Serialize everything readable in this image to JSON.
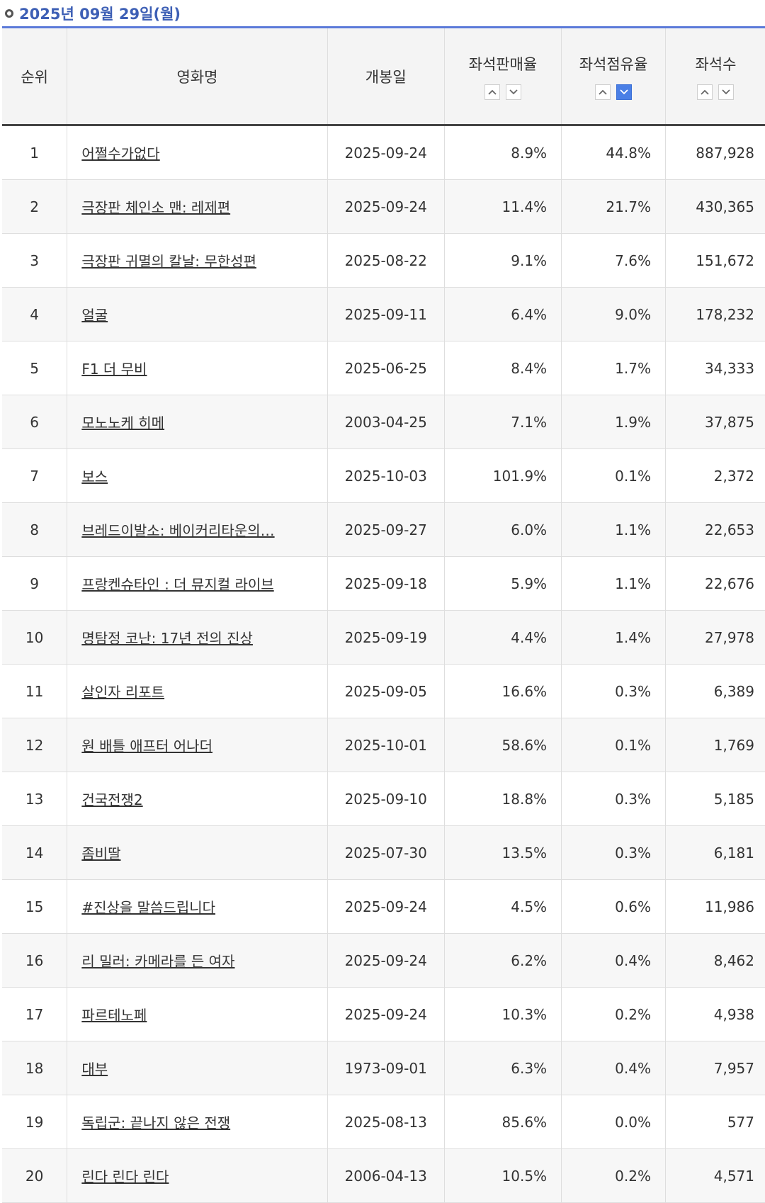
{
  "date_label": "2025년 09월 29일(월)",
  "headers": {
    "rank": "순위",
    "title": "영화명",
    "release": "개봉일",
    "sales_rate": "좌석판매율",
    "seat_share": "좌석점유율",
    "seats": "좌석수"
  },
  "sort": {
    "active_column": "seat_share",
    "active_direction": "desc",
    "active_color": "#4a7fe6"
  },
  "accent_color": "#5b7ad9",
  "rows": [
    {
      "rank": "1",
      "title": "어쩔수가없다",
      "release": "2025-09-24",
      "sales_rate": "8.9%",
      "seat_share": "44.8%",
      "seats": "887,928"
    },
    {
      "rank": "2",
      "title": "극장판 체인소 맨: 레제편",
      "release": "2025-09-24",
      "sales_rate": "11.4%",
      "seat_share": "21.7%",
      "seats": "430,365"
    },
    {
      "rank": "3",
      "title": "극장판 귀멸의 칼날: 무한성편",
      "release": "2025-08-22",
      "sales_rate": "9.1%",
      "seat_share": "7.6%",
      "seats": "151,672"
    },
    {
      "rank": "4",
      "title": "얼굴",
      "release": "2025-09-11",
      "sales_rate": "6.4%",
      "seat_share": "9.0%",
      "seats": "178,232"
    },
    {
      "rank": "5",
      "title": "F1 더 무비",
      "release": "2025-06-25",
      "sales_rate": "8.4%",
      "seat_share": "1.7%",
      "seats": "34,333"
    },
    {
      "rank": "6",
      "title": "모노노케 히메",
      "release": "2003-04-25",
      "sales_rate": "7.1%",
      "seat_share": "1.9%",
      "seats": "37,875"
    },
    {
      "rank": "7",
      "title": "보스",
      "release": "2025-10-03",
      "sales_rate": "101.9%",
      "seat_share": "0.1%",
      "seats": "2,372"
    },
    {
      "rank": "8",
      "title": "브레드이발소: 베이커리타운의…",
      "release": "2025-09-27",
      "sales_rate": "6.0%",
      "seat_share": "1.1%",
      "seats": "22,653"
    },
    {
      "rank": "9",
      "title": "프랑켄슈타인 : 더 뮤지컬 라이브",
      "release": "2025-09-18",
      "sales_rate": "5.9%",
      "seat_share": "1.1%",
      "seats": "22,676"
    },
    {
      "rank": "10",
      "title": "명탐정 코난: 17년 전의 진상",
      "release": "2025-09-19",
      "sales_rate": "4.4%",
      "seat_share": "1.4%",
      "seats": "27,978"
    },
    {
      "rank": "11",
      "title": "살인자 리포트",
      "release": "2025-09-05",
      "sales_rate": "16.6%",
      "seat_share": "0.3%",
      "seats": "6,389"
    },
    {
      "rank": "12",
      "title": "원 배틀 애프터 어나더",
      "release": "2025-10-01",
      "sales_rate": "58.6%",
      "seat_share": "0.1%",
      "seats": "1,769"
    },
    {
      "rank": "13",
      "title": "건국전쟁2",
      "release": "2025-09-10",
      "sales_rate": "18.8%",
      "seat_share": "0.3%",
      "seats": "5,185"
    },
    {
      "rank": "14",
      "title": "좀비딸",
      "release": "2025-07-30",
      "sales_rate": "13.5%",
      "seat_share": "0.3%",
      "seats": "6,181"
    },
    {
      "rank": "15",
      "title": "#진상을 말씀드립니다",
      "release": "2025-09-24",
      "sales_rate": "4.5%",
      "seat_share": "0.6%",
      "seats": "11,986"
    },
    {
      "rank": "16",
      "title": "리 밀러: 카메라를 든 여자",
      "release": "2025-09-24",
      "sales_rate": "6.2%",
      "seat_share": "0.4%",
      "seats": "8,462"
    },
    {
      "rank": "17",
      "title": "파르테노페",
      "release": "2025-09-24",
      "sales_rate": "10.3%",
      "seat_share": "0.2%",
      "seats": "4,938"
    },
    {
      "rank": "18",
      "title": "대부",
      "release": "1973-09-01",
      "sales_rate": "6.3%",
      "seat_share": "0.4%",
      "seats": "7,957"
    },
    {
      "rank": "19",
      "title": "독립군: 끝나지 않은 전쟁",
      "release": "2025-08-13",
      "sales_rate": "85.6%",
      "seat_share": "0.0%",
      "seats": "577"
    },
    {
      "rank": "20",
      "title": "린다 린다 린다",
      "release": "2006-04-13",
      "sales_rate": "10.5%",
      "seat_share": "0.2%",
      "seats": "4,571"
    }
  ]
}
